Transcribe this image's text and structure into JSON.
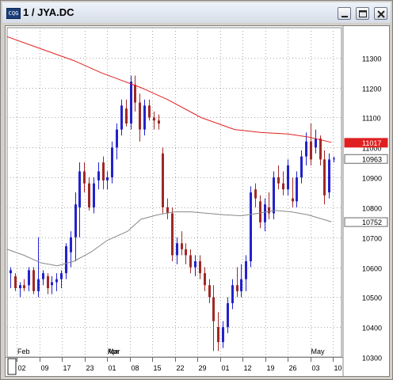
{
  "window": {
    "app_icon": "CQG",
    "title": "1 / JYA.DC",
    "buttons": [
      "minimize-icon",
      "maximize-icon",
      "close-icon"
    ]
  },
  "colors": {
    "up_candle": "#2222cc",
    "down_candle": "#a02828",
    "ma_long": "#e02020",
    "ma_short": "#888888",
    "grid": "#aaaaaa",
    "price_tag_red": "#e02020"
  },
  "chart_data": {
    "type": "candlestick",
    "symbol": "JYA.DC",
    "ylim": [
      10300,
      11400
    ],
    "y_ticks": [
      10300,
      10400,
      10500,
      10600,
      10700,
      10800,
      10900,
      11000,
      11100,
      11200,
      11300
    ],
    "x_ticks": [
      "02",
      "09",
      "17",
      "23",
      "01",
      "08",
      "15",
      "22",
      "29",
      "01",
      "12",
      "19",
      "26",
      "03",
      "10"
    ],
    "month_labels": [
      {
        "label": "Feb",
        "date": "02"
      },
      {
        "label": "Mar",
        "date": "01"
      },
      {
        "label": "Apr",
        "date": "01"
      },
      {
        "label": "May",
        "date": "03"
      }
    ],
    "price_tags": [
      {
        "value": "11017",
        "series": "ma_long"
      },
      {
        "value": "10963",
        "series": "last_price"
      },
      {
        "value": "10752",
        "series": "ma_short"
      }
    ],
    "last_price": 10963,
    "candles": [
      [
        10580,
        10600,
        10530,
        10590
      ],
      [
        10570,
        10580,
        10520,
        10530
      ],
      [
        10530,
        10550,
        10500,
        10540
      ],
      [
        10540,
        10560,
        10520,
        10530
      ],
      [
        10540,
        10600,
        10520,
        10590
      ],
      [
        10590,
        10600,
        10510,
        10520
      ],
      [
        10520,
        10700,
        10500,
        10560
      ],
      [
        10560,
        10590,
        10540,
        10580
      ],
      [
        10570,
        10580,
        10510,
        10530
      ],
      [
        10540,
        10570,
        10510,
        10550
      ],
      [
        10550,
        10580,
        10520,
        10560
      ],
      [
        10560,
        10590,
        10530,
        10580
      ],
      [
        10580,
        10680,
        10560,
        10670
      ],
      [
        10650,
        10720,
        10600,
        10700
      ],
      [
        10700,
        10850,
        10620,
        10810
      ],
      [
        10800,
        10950,
        10700,
        10920
      ],
      [
        10920,
        10950,
        10850,
        10880
      ],
      [
        10880,
        10900,
        10790,
        10800
      ],
      [
        10800,
        10900,
        10780,
        10880
      ],
      [
        10890,
        10950,
        10860,
        10920
      ],
      [
        10950,
        10970,
        10860,
        10890
      ],
      [
        10890,
        10920,
        10860,
        10900
      ],
      [
        10900,
        11020,
        10880,
        11000
      ],
      [
        11000,
        11080,
        10960,
        11060
      ],
      [
        11060,
        11160,
        11040,
        11140
      ],
      [
        11130,
        11160,
        11070,
        11080
      ],
      [
        11080,
        11240,
        11060,
        11220
      ],
      [
        11210,
        11240,
        11120,
        11150
      ],
      [
        11150,
        11180,
        11020,
        11060
      ],
      [
        11060,
        11160,
        11040,
        11140
      ],
      [
        11140,
        11160,
        11090,
        11100
      ],
      [
        11100,
        11120,
        11060,
        11090
      ],
      [
        11090,
        11110,
        11060,
        11080
      ],
      [
        10980,
        11000,
        10780,
        10800
      ],
      [
        10800,
        10830,
        10760,
        10780
      ],
      [
        10780,
        10800,
        10620,
        10640
      ],
      [
        10640,
        10700,
        10610,
        10680
      ],
      [
        10680,
        10720,
        10640,
        10660
      ],
      [
        10660,
        10680,
        10610,
        10640
      ],
      [
        10640,
        10660,
        10580,
        10600
      ],
      [
        10600,
        10640,
        10570,
        10620
      ],
      [
        10620,
        10640,
        10560,
        10580
      ],
      [
        10580,
        10600,
        10520,
        10540
      ],
      [
        10540,
        10560,
        10480,
        10500
      ],
      [
        10500,
        10540,
        10320,
        10420
      ],
      [
        10400,
        10450,
        10320,
        10350
      ],
      [
        10350,
        10420,
        10330,
        10400
      ],
      [
        10400,
        10500,
        10380,
        10480
      ],
      [
        10480,
        10560,
        10460,
        10540
      ],
      [
        10540,
        10600,
        10500,
        10520
      ],
      [
        10520,
        10610,
        10500,
        10560
      ],
      [
        10560,
        10640,
        10520,
        10620
      ],
      [
        10620,
        10870,
        10600,
        10850
      ],
      [
        10860,
        10880,
        10800,
        10830
      ],
      [
        10820,
        10840,
        10730,
        10750
      ],
      [
        10750,
        10830,
        10720,
        10810
      ],
      [
        10800,
        10850,
        10760,
        10780
      ],
      [
        10780,
        10920,
        10760,
        10900
      ],
      [
        10900,
        10940,
        10860,
        10880
      ],
      [
        10880,
        10920,
        10840,
        10860
      ],
      [
        10860,
        10960,
        10840,
        10940
      ],
      [
        10830,
        10900,
        10800,
        10820
      ],
      [
        10820,
        10920,
        10800,
        10900
      ],
      [
        10900,
        10990,
        10880,
        10970
      ],
      [
        10970,
        11050,
        10940,
        11020
      ],
      [
        11020,
        11080,
        10940,
        10960
      ],
      [
        11000,
        11060,
        10980,
        11030
      ],
      [
        11030,
        11040,
        10940,
        10960
      ],
      [
        10960,
        10990,
        10810,
        10840
      ],
      [
        10850,
        10980,
        10830,
        10960
      ],
      [
        10963,
        10970,
        10950,
        10963
      ]
    ],
    "ma_long": [
      [
        0,
        11370
      ],
      [
        0.1,
        11330
      ],
      [
        0.2,
        11290
      ],
      [
        0.28,
        11250
      ],
      [
        0.34,
        11225
      ],
      [
        0.4,
        11200
      ],
      [
        0.48,
        11160
      ],
      [
        0.58,
        11100
      ],
      [
        0.68,
        11060
      ],
      [
        0.76,
        11050
      ],
      [
        0.84,
        11045
      ],
      [
        0.9,
        11035
      ],
      [
        0.97,
        11017
      ]
    ],
    "ma_short": [
      [
        0,
        10660
      ],
      [
        0.05,
        10640
      ],
      [
        0.1,
        10615
      ],
      [
        0.15,
        10605
      ],
      [
        0.2,
        10620
      ],
      [
        0.25,
        10650
      ],
      [
        0.3,
        10690
      ],
      [
        0.36,
        10720
      ],
      [
        0.4,
        10760
      ],
      [
        0.45,
        10775
      ],
      [
        0.5,
        10785
      ],
      [
        0.55,
        10785
      ],
      [
        0.6,
        10780
      ],
      [
        0.65,
        10775
      ],
      [
        0.7,
        10772
      ],
      [
        0.75,
        10780
      ],
      [
        0.8,
        10790
      ],
      [
        0.85,
        10785
      ],
      [
        0.9,
        10775
      ],
      [
        0.97,
        10752
      ]
    ]
  }
}
